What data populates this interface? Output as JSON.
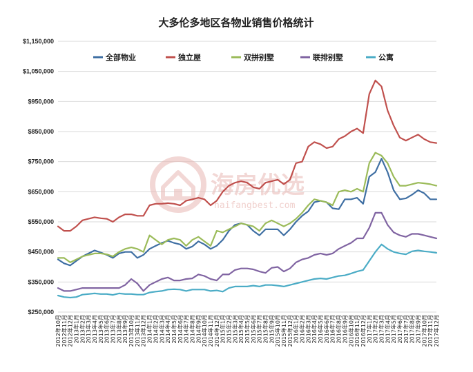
{
  "chart_data": {
    "type": "line",
    "title": "大多伦多地区各物业销售价格统计",
    "xlabel": "",
    "ylabel": "",
    "ylim": [
      250000,
      1150000
    ],
    "yticks": [
      "$250,000",
      "$350,000",
      "$450,000",
      "$550,000",
      "$650,000",
      "$750,000",
      "$850,000",
      "$950,000",
      "$1,050,000",
      "$1,150,000"
    ],
    "grid": true,
    "legend_position": "top",
    "x": [
      "2012年10月",
      "2012年11月",
      "2012年12月",
      "2013年1月",
      "2013年2月",
      "2013年3月",
      "2013年4月",
      "2013年5月",
      "2013年6月",
      "2013年7月",
      "2013年8月",
      "2013年9月",
      "2013年10月",
      "2013年11月",
      "2013年12月",
      "2014年1月",
      "2014年2月",
      "2014年3月",
      "2014年4月",
      "2014年5月",
      "2014年6月",
      "2014年7月",
      "2014年8月",
      "2014年9月",
      "2014年10月",
      "2014年11月",
      "2014年12月",
      "2015年1月",
      "2015年2月",
      "2015年3月",
      "2015年4月",
      "2015年5月",
      "2015年6月",
      "2015年7月",
      "2015年8月",
      "2015年9月",
      "2015年10月",
      "2015年11月",
      "2015年12月",
      "2016年1月",
      "2016年2月",
      "2016年3月",
      "2016年4月",
      "2016年5月",
      "2016年6月",
      "2016年7月",
      "2016年8月",
      "2016年9月",
      "2016年10月",
      "2016年11月",
      "2016年12月",
      "2017年1月",
      "2017年2月",
      "2017年3月",
      "2017年4月",
      "2017年5月",
      "2017年6月",
      "2017年7月",
      "2017年8月",
      "2017年9月",
      "2017年10月",
      "2017年11月",
      "2017年12月"
    ],
    "series": [
      {
        "name": "全部物业",
        "color": "#3f6fa3",
        "values": [
          425000,
          412000,
          405000,
          420000,
          435000,
          445000,
          455000,
          448000,
          440000,
          430000,
          445000,
          450000,
          450000,
          430000,
          440000,
          460000,
          470000,
          480000,
          487000,
          480000,
          475000,
          460000,
          468000,
          485000,
          475000,
          460000,
          470000,
          490000,
          520000,
          540000,
          545000,
          540000,
          520000,
          505000,
          525000,
          525000,
          525000,
          505000,
          525000,
          550000,
          570000,
          585000,
          615000,
          620000,
          615000,
          595000,
          592000,
          625000,
          625000,
          630000,
          610000,
          700000,
          715000,
          760000,
          715000,
          655000,
          625000,
          628000,
          640000,
          655000,
          645000,
          625000,
          625000
        ]
      },
      {
        "name": "独立屋",
        "color": "#c0504d",
        "values": [
          535000,
          520000,
          520000,
          535000,
          555000,
          560000,
          565000,
          562000,
          560000,
          550000,
          565000,
          575000,
          575000,
          570000,
          570000,
          605000,
          610000,
          610000,
          612000,
          610000,
          605000,
          620000,
          625000,
          630000,
          625000,
          605000,
          620000,
          650000,
          670000,
          680000,
          685000,
          680000,
          665000,
          660000,
          680000,
          685000,
          690000,
          675000,
          690000,
          745000,
          750000,
          800000,
          815000,
          808000,
          795000,
          800000,
          825000,
          835000,
          850000,
          860000,
          845000,
          975000,
          1020000,
          1000000,
          920000,
          870000,
          830000,
          820000,
          830000,
          840000,
          825000,
          815000,
          812000
        ]
      },
      {
        "name": "双拼别墅",
        "color": "#9bbb59",
        "values": [
          430000,
          430000,
          415000,
          425000,
          435000,
          440000,
          445000,
          445000,
          442000,
          435000,
          450000,
          460000,
          465000,
          460000,
          450000,
          505000,
          490000,
          475000,
          490000,
          495000,
          490000,
          470000,
          490000,
          500000,
          485000,
          470000,
          520000,
          515000,
          525000,
          535000,
          545000,
          540000,
          535000,
          520000,
          545000,
          555000,
          545000,
          535000,
          545000,
          560000,
          580000,
          605000,
          625000,
          620000,
          615000,
          605000,
          650000,
          655000,
          650000,
          660000,
          650000,
          745000,
          780000,
          770000,
          745000,
          700000,
          670000,
          670000,
          675000,
          680000,
          678000,
          675000,
          670000
        ]
      },
      {
        "name": "联排别墅",
        "color": "#8064a2",
        "values": [
          330000,
          320000,
          320000,
          325000,
          330000,
          330000,
          330000,
          330000,
          330000,
          330000,
          330000,
          340000,
          360000,
          345000,
          320000,
          340000,
          350000,
          360000,
          365000,
          355000,
          355000,
          360000,
          362000,
          375000,
          370000,
          360000,
          355000,
          375000,
          375000,
          390000,
          395000,
          395000,
          392000,
          385000,
          380000,
          397000,
          400000,
          385000,
          395000,
          415000,
          425000,
          430000,
          440000,
          445000,
          440000,
          445000,
          460000,
          470000,
          480000,
          495000,
          495000,
          530000,
          580000,
          580000,
          540000,
          515000,
          505000,
          500000,
          510000,
          510000,
          505000,
          500000,
          495000
        ]
      },
      {
        "name": "公寓",
        "color": "#4bacc6",
        "values": [
          305000,
          300000,
          298000,
          300000,
          308000,
          310000,
          312000,
          310000,
          310000,
          307000,
          312000,
          310000,
          310000,
          308000,
          308000,
          315000,
          318000,
          320000,
          325000,
          326000,
          325000,
          320000,
          325000,
          325000,
          325000,
          320000,
          322000,
          318000,
          330000,
          335000,
          335000,
          335000,
          338000,
          335000,
          340000,
          340000,
          338000,
          335000,
          340000,
          345000,
          350000,
          355000,
          360000,
          362000,
          360000,
          365000,
          370000,
          372000,
          378000,
          385000,
          390000,
          420000,
          450000,
          475000,
          460000,
          450000,
          445000,
          442000,
          452000,
          455000,
          452000,
          450000,
          447000
        ]
      }
    ]
  },
  "watermark": {
    "brand": "海房优选",
    "url": "haifangbest.com"
  }
}
